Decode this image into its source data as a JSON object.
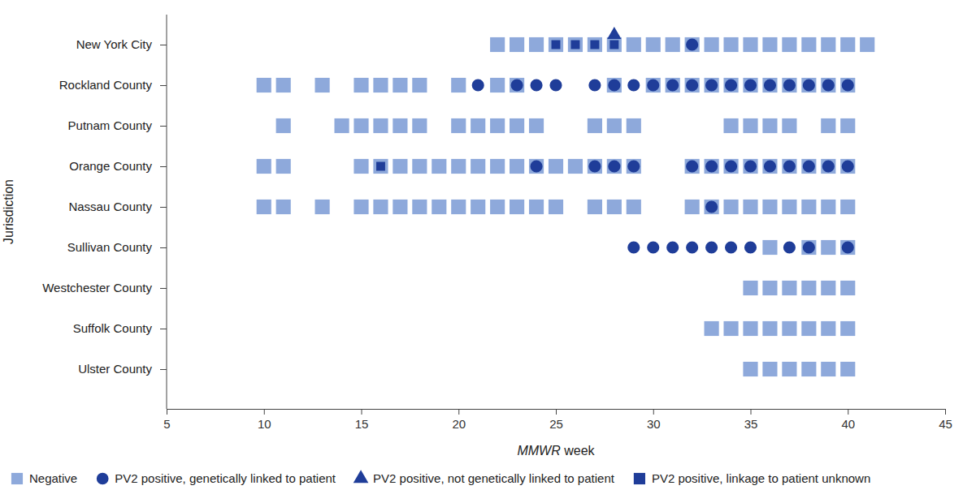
{
  "chart_data": {
    "type": "scatter",
    "xlabel": "MMWR week",
    "ylabel": "Jurisdiction",
    "categories": [
      "New York City",
      "Rockland County",
      "Putnam County",
      "Orange County",
      "Nassau County",
      "Sullivan County",
      "Westchester County",
      "Suffolk County",
      "Ulster County"
    ],
    "xlim": [
      5,
      45
    ],
    "xticks": [
      5,
      10,
      15,
      20,
      25,
      30,
      35,
      40,
      45
    ],
    "legend": "bottom",
    "series": [
      {
        "name": "Negative",
        "color": "#8ea9db",
        "marker": "square",
        "x": [
          22,
          23,
          24,
          25,
          26,
          27,
          28,
          29,
          30,
          31,
          32,
          33,
          34,
          35,
          36,
          37,
          38,
          39,
          40,
          41,
          10,
          11,
          13,
          15,
          16,
          17,
          18,
          20,
          22,
          23,
          28,
          30,
          31,
          32,
          33,
          34,
          35,
          36,
          37,
          38,
          39,
          40,
          11,
          14,
          15,
          16,
          17,
          18,
          20,
          21,
          22,
          23,
          24,
          27,
          28,
          29,
          34,
          35,
          36,
          37,
          39,
          40,
          10,
          11,
          15,
          16,
          17,
          18,
          19,
          20,
          21,
          22,
          23,
          24,
          25,
          26,
          27,
          28,
          29,
          32,
          33,
          34,
          35,
          36,
          37,
          38,
          39,
          40,
          10,
          11,
          13,
          15,
          16,
          17,
          18,
          19,
          20,
          21,
          22,
          23,
          24,
          25,
          27,
          28,
          29,
          32,
          33,
          34,
          35,
          36,
          37,
          38,
          39,
          40,
          36,
          38,
          39,
          40,
          35,
          36,
          37,
          38,
          39,
          40,
          33,
          34,
          35,
          36,
          37,
          38,
          39,
          40,
          35,
          36,
          37,
          38,
          39,
          40
        ],
        "values": [
          "New York City",
          "New York City",
          "New York City",
          "New York City",
          "New York City",
          "New York City",
          "New York City",
          "New York City",
          "New York City",
          "New York City",
          "New York City",
          "New York City",
          "New York City",
          "New York City",
          "New York City",
          "New York City",
          "New York City",
          "New York City",
          "New York City",
          "New York City",
          "Rockland County",
          "Rockland County",
          "Rockland County",
          "Rockland County",
          "Rockland County",
          "Rockland County",
          "Rockland County",
          "Rockland County",
          "Rockland County",
          "Rockland County",
          "Rockland County",
          "Rockland County",
          "Rockland County",
          "Rockland County",
          "Rockland County",
          "Rockland County",
          "Rockland County",
          "Rockland County",
          "Rockland County",
          "Rockland County",
          "Rockland County",
          "Rockland County",
          "Putnam County",
          "Putnam County",
          "Putnam County",
          "Putnam County",
          "Putnam County",
          "Putnam County",
          "Putnam County",
          "Putnam County",
          "Putnam County",
          "Putnam County",
          "Putnam County",
          "Putnam County",
          "Putnam County",
          "Putnam County",
          "Putnam County",
          "Putnam County",
          "Putnam County",
          "Putnam County",
          "Putnam County",
          "Putnam County",
          "Orange County",
          "Orange County",
          "Orange County",
          "Orange County",
          "Orange County",
          "Orange County",
          "Orange County",
          "Orange County",
          "Orange County",
          "Orange County",
          "Orange County",
          "Orange County",
          "Orange County",
          "Orange County",
          "Orange County",
          "Orange County",
          "Orange County",
          "Orange County",
          "Orange County",
          "Orange County",
          "Orange County",
          "Orange County",
          "Orange County",
          "Orange County",
          "Orange County",
          "Orange County",
          "Nassau County",
          "Nassau County",
          "Nassau County",
          "Nassau County",
          "Nassau County",
          "Nassau County",
          "Nassau County",
          "Nassau County",
          "Nassau County",
          "Nassau County",
          "Nassau County",
          "Nassau County",
          "Nassau County",
          "Nassau County",
          "Nassau County",
          "Nassau County",
          "Nassau County",
          "Nassau County",
          "Nassau County",
          "Nassau County",
          "Nassau County",
          "Nassau County",
          "Nassau County",
          "Nassau County",
          "Nassau County",
          "Nassau County",
          "Sullivan County",
          "Sullivan County",
          "Sullivan County",
          "Sullivan County",
          "Westchester County",
          "Westchester County",
          "Westchester County",
          "Westchester County",
          "Westchester County",
          "Westchester County",
          "Suffolk County",
          "Suffolk County",
          "Suffolk County",
          "Suffolk County",
          "Suffolk County",
          "Suffolk County",
          "Suffolk County",
          "Suffolk County",
          "Ulster County",
          "Ulster County",
          "Ulster County",
          "Ulster County",
          "Ulster County",
          "Ulster County"
        ]
      },
      {
        "name": "PV2 positive, genetically linked to patient",
        "color": "#1f3d99",
        "marker": "circle",
        "x": [
          32,
          21,
          23,
          24,
          25,
          27,
          28,
          29,
          30,
          31,
          32,
          33,
          34,
          35,
          36,
          37,
          38,
          39,
          40,
          24,
          27,
          28,
          29,
          32,
          33,
          34,
          35,
          36,
          37,
          38,
          39,
          40,
          33,
          29,
          30,
          31,
          32,
          33,
          34,
          35,
          37,
          38,
          40
        ],
        "values": [
          "New York City",
          "Rockland County",
          "Rockland County",
          "Rockland County",
          "Rockland County",
          "Rockland County",
          "Rockland County",
          "Rockland County",
          "Rockland County",
          "Rockland County",
          "Rockland County",
          "Rockland County",
          "Rockland County",
          "Rockland County",
          "Rockland County",
          "Rockland County",
          "Rockland County",
          "Rockland County",
          "Rockland County",
          "Orange County",
          "Orange County",
          "Orange County",
          "Orange County",
          "Orange County",
          "Orange County",
          "Orange County",
          "Orange County",
          "Orange County",
          "Orange County",
          "Orange County",
          "Orange County",
          "Orange County",
          "Nassau County",
          "Sullivan County",
          "Sullivan County",
          "Sullivan County",
          "Sullivan County",
          "Sullivan County",
          "Sullivan County",
          "Sullivan County",
          "Sullivan County",
          "Sullivan County",
          "Sullivan County"
        ]
      },
      {
        "name": "PV2 positive, not genetically linked to patient",
        "color": "#1f3d99",
        "marker": "triangle",
        "x": [
          28
        ],
        "values": [
          "New York City"
        ]
      },
      {
        "name": "PV2 positive, linkage to patient unknown",
        "color": "#1f3d99",
        "marker": "square",
        "x": [
          25,
          26,
          27,
          28,
          16
        ],
        "values": [
          "New York City",
          "New York City",
          "New York City",
          "New York City",
          "Orange County"
        ]
      }
    ]
  }
}
